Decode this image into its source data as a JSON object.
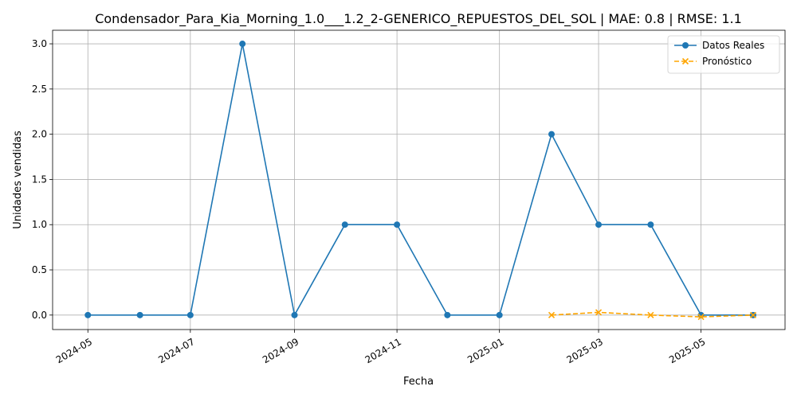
{
  "chart_data": {
    "type": "line",
    "title": "Condensador_Para_Kia_Morning_1.0___1.2_2-GENERICO_REPUESTOS_DEL_SOL | MAE: 0.8 | RMSE: 1.1",
    "xlabel": "Fecha",
    "ylabel": "Unidades vendidas",
    "xlim": [
      "2024-04-10",
      "2025-06-20"
    ],
    "ylim": [
      -0.16,
      3.15
    ],
    "x_ticks": [
      "2024-05",
      "2024-07",
      "2024-09",
      "2024-11",
      "2025-01",
      "2025-03",
      "2025-05"
    ],
    "y_ticks": [
      "0.0",
      "0.5",
      "1.0",
      "1.5",
      "2.0",
      "2.5",
      "3.0"
    ],
    "grid": true,
    "legend_position": "top-right",
    "series": [
      {
        "name": "Datos Reales",
        "color": "#1f77b4",
        "marker": "circle",
        "line": "solid",
        "x": [
          "2024-05-01",
          "2024-06-01",
          "2024-07-01",
          "2024-08-01",
          "2024-09-01",
          "2024-10-01",
          "2024-11-01",
          "2024-12-01",
          "2025-01-01",
          "2025-02-01",
          "2025-03-01",
          "2025-04-01",
          "2025-05-01",
          "2025-06-01"
        ],
        "values": [
          0,
          0,
          0,
          3,
          0,
          1,
          1,
          0,
          0,
          2,
          1,
          1,
          0,
          0
        ]
      },
      {
        "name": "Pronóstico",
        "color": "#ffa500",
        "marker": "x",
        "line": "dashed",
        "x": [
          "2025-02-01",
          "2025-03-01",
          "2025-04-01",
          "2025-05-01",
          "2025-06-01"
        ],
        "values": [
          0.0,
          0.03,
          0.0,
          -0.02,
          0.0
        ]
      }
    ]
  }
}
